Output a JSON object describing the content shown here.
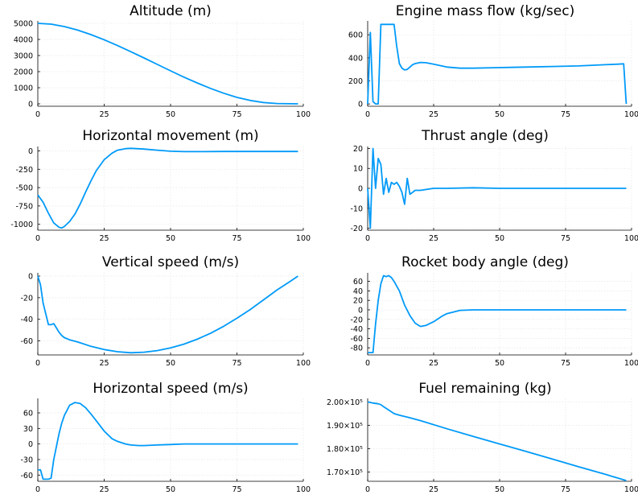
{
  "colors": {
    "series": "#009af9",
    "grid": "#e6e6e6",
    "axis": "#000000"
  },
  "chart_data": [
    {
      "type": "line",
      "grid": true,
      "title": "Altitude (m)",
      "xlim": [
        0,
        100
      ],
      "ylim": [
        -150,
        5150
      ],
      "xticks": [
        0,
        25,
        50,
        75,
        100
      ],
      "yticks": [
        0,
        1000,
        2000,
        3000,
        4000,
        5000
      ],
      "yticklabels": [
        "0",
        "1000",
        "2000",
        "3000",
        "4000",
        "5000"
      ],
      "series": [
        {
          "x": [
            0,
            5,
            10,
            15,
            20,
            25,
            30,
            35,
            40,
            45,
            50,
            55,
            60,
            65,
            70,
            75,
            80,
            85,
            90,
            95,
            98
          ],
          "y": [
            5000,
            4950,
            4800,
            4580,
            4300,
            3980,
            3620,
            3240,
            2850,
            2450,
            2050,
            1660,
            1300,
            960,
            660,
            400,
            210,
            80,
            20,
            5,
            0
          ]
        }
      ]
    },
    {
      "type": "line",
      "grid": true,
      "title": "Engine mass flow (kg/sec)",
      "xlim": [
        0,
        100
      ],
      "ylim": [
        -20,
        720
      ],
      "xticks": [
        0,
        25,
        50,
        75,
        100
      ],
      "yticks": [
        0,
        200,
        400,
        600
      ],
      "yticklabels": [
        "0",
        "200",
        "400",
        "600"
      ],
      "series": [
        {
          "x": [
            0,
            1,
            2,
            3,
            4,
            5,
            6,
            7,
            8,
            9,
            10,
            11,
            12,
            13,
            14,
            15,
            16,
            17,
            18,
            20,
            22,
            25,
            30,
            35,
            40,
            50,
            60,
            70,
            80,
            90,
            95,
            97,
            98
          ],
          "y": [
            0,
            620,
            20,
            0,
            0,
            690,
            690,
            690,
            690,
            690,
            690,
            500,
            350,
            310,
            295,
            300,
            320,
            340,
            350,
            360,
            358,
            345,
            320,
            310,
            310,
            315,
            320,
            325,
            330,
            340,
            345,
            348,
            0
          ]
        }
      ]
    },
    {
      "type": "line",
      "grid": true,
      "title": "Horizontal movement (m)",
      "xlim": [
        0,
        100
      ],
      "ylim": [
        -1080,
        60
      ],
      "xticks": [
        0,
        25,
        50,
        75,
        100
      ],
      "yticks": [
        -1000,
        -750,
        -500,
        -250,
        0
      ],
      "yticklabels": [
        "-1000",
        "-750",
        "-500",
        "-250",
        "0"
      ],
      "series": [
        {
          "x": [
            0,
            2,
            4,
            6,
            8,
            9,
            10,
            12,
            14,
            16,
            18,
            20,
            22,
            25,
            28,
            30,
            33,
            35,
            40,
            45,
            50,
            55,
            60,
            70,
            80,
            90,
            98
          ],
          "y": [
            -600,
            -700,
            -850,
            -980,
            -1040,
            -1050,
            -1030,
            -960,
            -860,
            -720,
            -560,
            -410,
            -270,
            -120,
            -30,
            10,
            30,
            35,
            25,
            10,
            -5,
            -10,
            -10,
            -8,
            -8,
            -8,
            -8
          ]
        }
      ]
    },
    {
      "type": "line",
      "grid": true,
      "title": "Thrust angle (deg)",
      "xlim": [
        0,
        100
      ],
      "ylim": [
        -21,
        21
      ],
      "xticks": [
        0,
        25,
        50,
        75,
        100
      ],
      "yticks": [
        -20,
        -10,
        0,
        10,
        20
      ],
      "yticklabels": [
        "-20",
        "-10",
        "0",
        "10",
        "20"
      ],
      "series": [
        {
          "x": [
            0,
            1,
            2,
            3,
            4,
            5,
            6,
            7,
            8,
            9,
            10,
            11,
            12,
            13,
            14,
            15,
            16,
            17,
            18,
            20,
            25,
            30,
            40,
            50,
            60,
            80,
            98
          ],
          "y": [
            0,
            -20,
            20,
            0,
            15,
            12,
            -3,
            5,
            -2,
            3,
            2,
            3,
            1,
            -2,
            -8,
            5,
            -3,
            -2,
            -1,
            -1,
            0,
            0,
            0.3,
            0,
            0,
            0,
            0
          ]
        }
      ]
    },
    {
      "type": "line",
      "grid": true,
      "title": "Vertical speed (m/s)",
      "xlim": [
        0,
        100
      ],
      "ylim": [
        -73,
        3
      ],
      "xticks": [
        0,
        25,
        50,
        75,
        100
      ],
      "yticks": [
        -60,
        -40,
        -20,
        0
      ],
      "yticklabels": [
        "-60",
        "-40",
        "-20",
        "0"
      ],
      "series": [
        {
          "x": [
            0,
            1,
            2,
            3,
            4,
            5,
            6,
            7,
            8,
            9,
            10,
            12,
            15,
            20,
            25,
            30,
            35,
            40,
            45,
            50,
            55,
            60,
            65,
            70,
            75,
            80,
            85,
            90,
            95,
            98
          ],
          "y": [
            0,
            -8,
            -25,
            -35,
            -45,
            -45,
            -44,
            -48,
            -52,
            -55,
            -57,
            -59,
            -61,
            -65,
            -68,
            -70,
            -71,
            -70.5,
            -69,
            -66.5,
            -63,
            -58.5,
            -53,
            -46.5,
            -39,
            -31,
            -22,
            -13,
            -5,
            0
          ]
        }
      ]
    },
    {
      "type": "line",
      "grid": true,
      "title": "Rocket body angle (deg)",
      "xlim": [
        0,
        100
      ],
      "ylim": [
        -95,
        78
      ],
      "xticks": [
        0,
        25,
        50,
        75,
        100
      ],
      "yticks": [
        -80,
        -60,
        -40,
        -20,
        0,
        20,
        40,
        60
      ],
      "yticklabels": [
        "-80",
        "-60",
        "-40",
        "-20",
        "0",
        "20",
        "40",
        "60"
      ],
      "series": [
        {
          "x": [
            0,
            1,
            2,
            3,
            4,
            5,
            6,
            7,
            8,
            9,
            10,
            12,
            14,
            16,
            18,
            20,
            22,
            25,
            28,
            30,
            35,
            40,
            50,
            60,
            70,
            80,
            90,
            98
          ],
          "y": [
            -90,
            -90,
            -90,
            -30,
            20,
            55,
            72,
            70,
            72,
            68,
            60,
            40,
            10,
            -12,
            -28,
            -35,
            -33,
            -25,
            -14,
            -8,
            -1,
            0,
            0,
            0,
            0,
            0,
            0,
            0
          ]
        }
      ]
    },
    {
      "type": "line",
      "grid": true,
      "title": "Horizontal speed (m/s)",
      "xlim": [
        0,
        100
      ],
      "ylim": [
        -72,
        88
      ],
      "xticks": [
        0,
        25,
        50,
        75,
        100
      ],
      "yticks": [
        -60,
        -30,
        0,
        30,
        60
      ],
      "yticklabels": [
        "-60",
        "-30",
        "0",
        "30",
        "60"
      ],
      "series": [
        {
          "x": [
            0,
            1,
            2,
            3,
            4,
            5,
            6,
            7,
            8,
            9,
            10,
            12,
            14,
            16,
            18,
            20,
            22,
            25,
            28,
            30,
            33,
            35,
            38,
            40,
            45,
            50,
            55,
            60,
            70,
            80,
            90,
            98
          ],
          "y": [
            -50,
            -50,
            -68,
            -68,
            -68,
            -66,
            -30,
            -5,
            20,
            40,
            55,
            75,
            80,
            78,
            70,
            58,
            45,
            25,
            10,
            5,
            0,
            -2,
            -3,
            -3,
            -2,
            -1,
            0,
            0,
            0,
            0,
            0,
            0
          ]
        }
      ]
    },
    {
      "type": "line",
      "grid": true,
      "title": "Fuel remaining (kg)",
      "xlim": [
        0,
        100
      ],
      "ylim": [
        166000,
        201500
      ],
      "xticks": [
        0,
        25,
        50,
        75,
        100
      ],
      "yticks": [
        170000,
        180000,
        190000,
        200000
      ],
      "yticklabels": [
        "1.70×10⁵",
        "1.80×10⁵",
        "1.90×10⁵",
        "2.00×10⁵"
      ],
      "series": [
        {
          "x": [
            0,
            2,
            4,
            5,
            6,
            8,
            10,
            12,
            15,
            20,
            30,
            40,
            50,
            60,
            70,
            80,
            90,
            98
          ],
          "y": [
            200000,
            199500,
            199200,
            198800,
            198000,
            196500,
            195000,
            194300,
            193500,
            192000,
            188500,
            185200,
            182000,
            178800,
            175500,
            172200,
            169000,
            166300
          ]
        }
      ]
    }
  ]
}
